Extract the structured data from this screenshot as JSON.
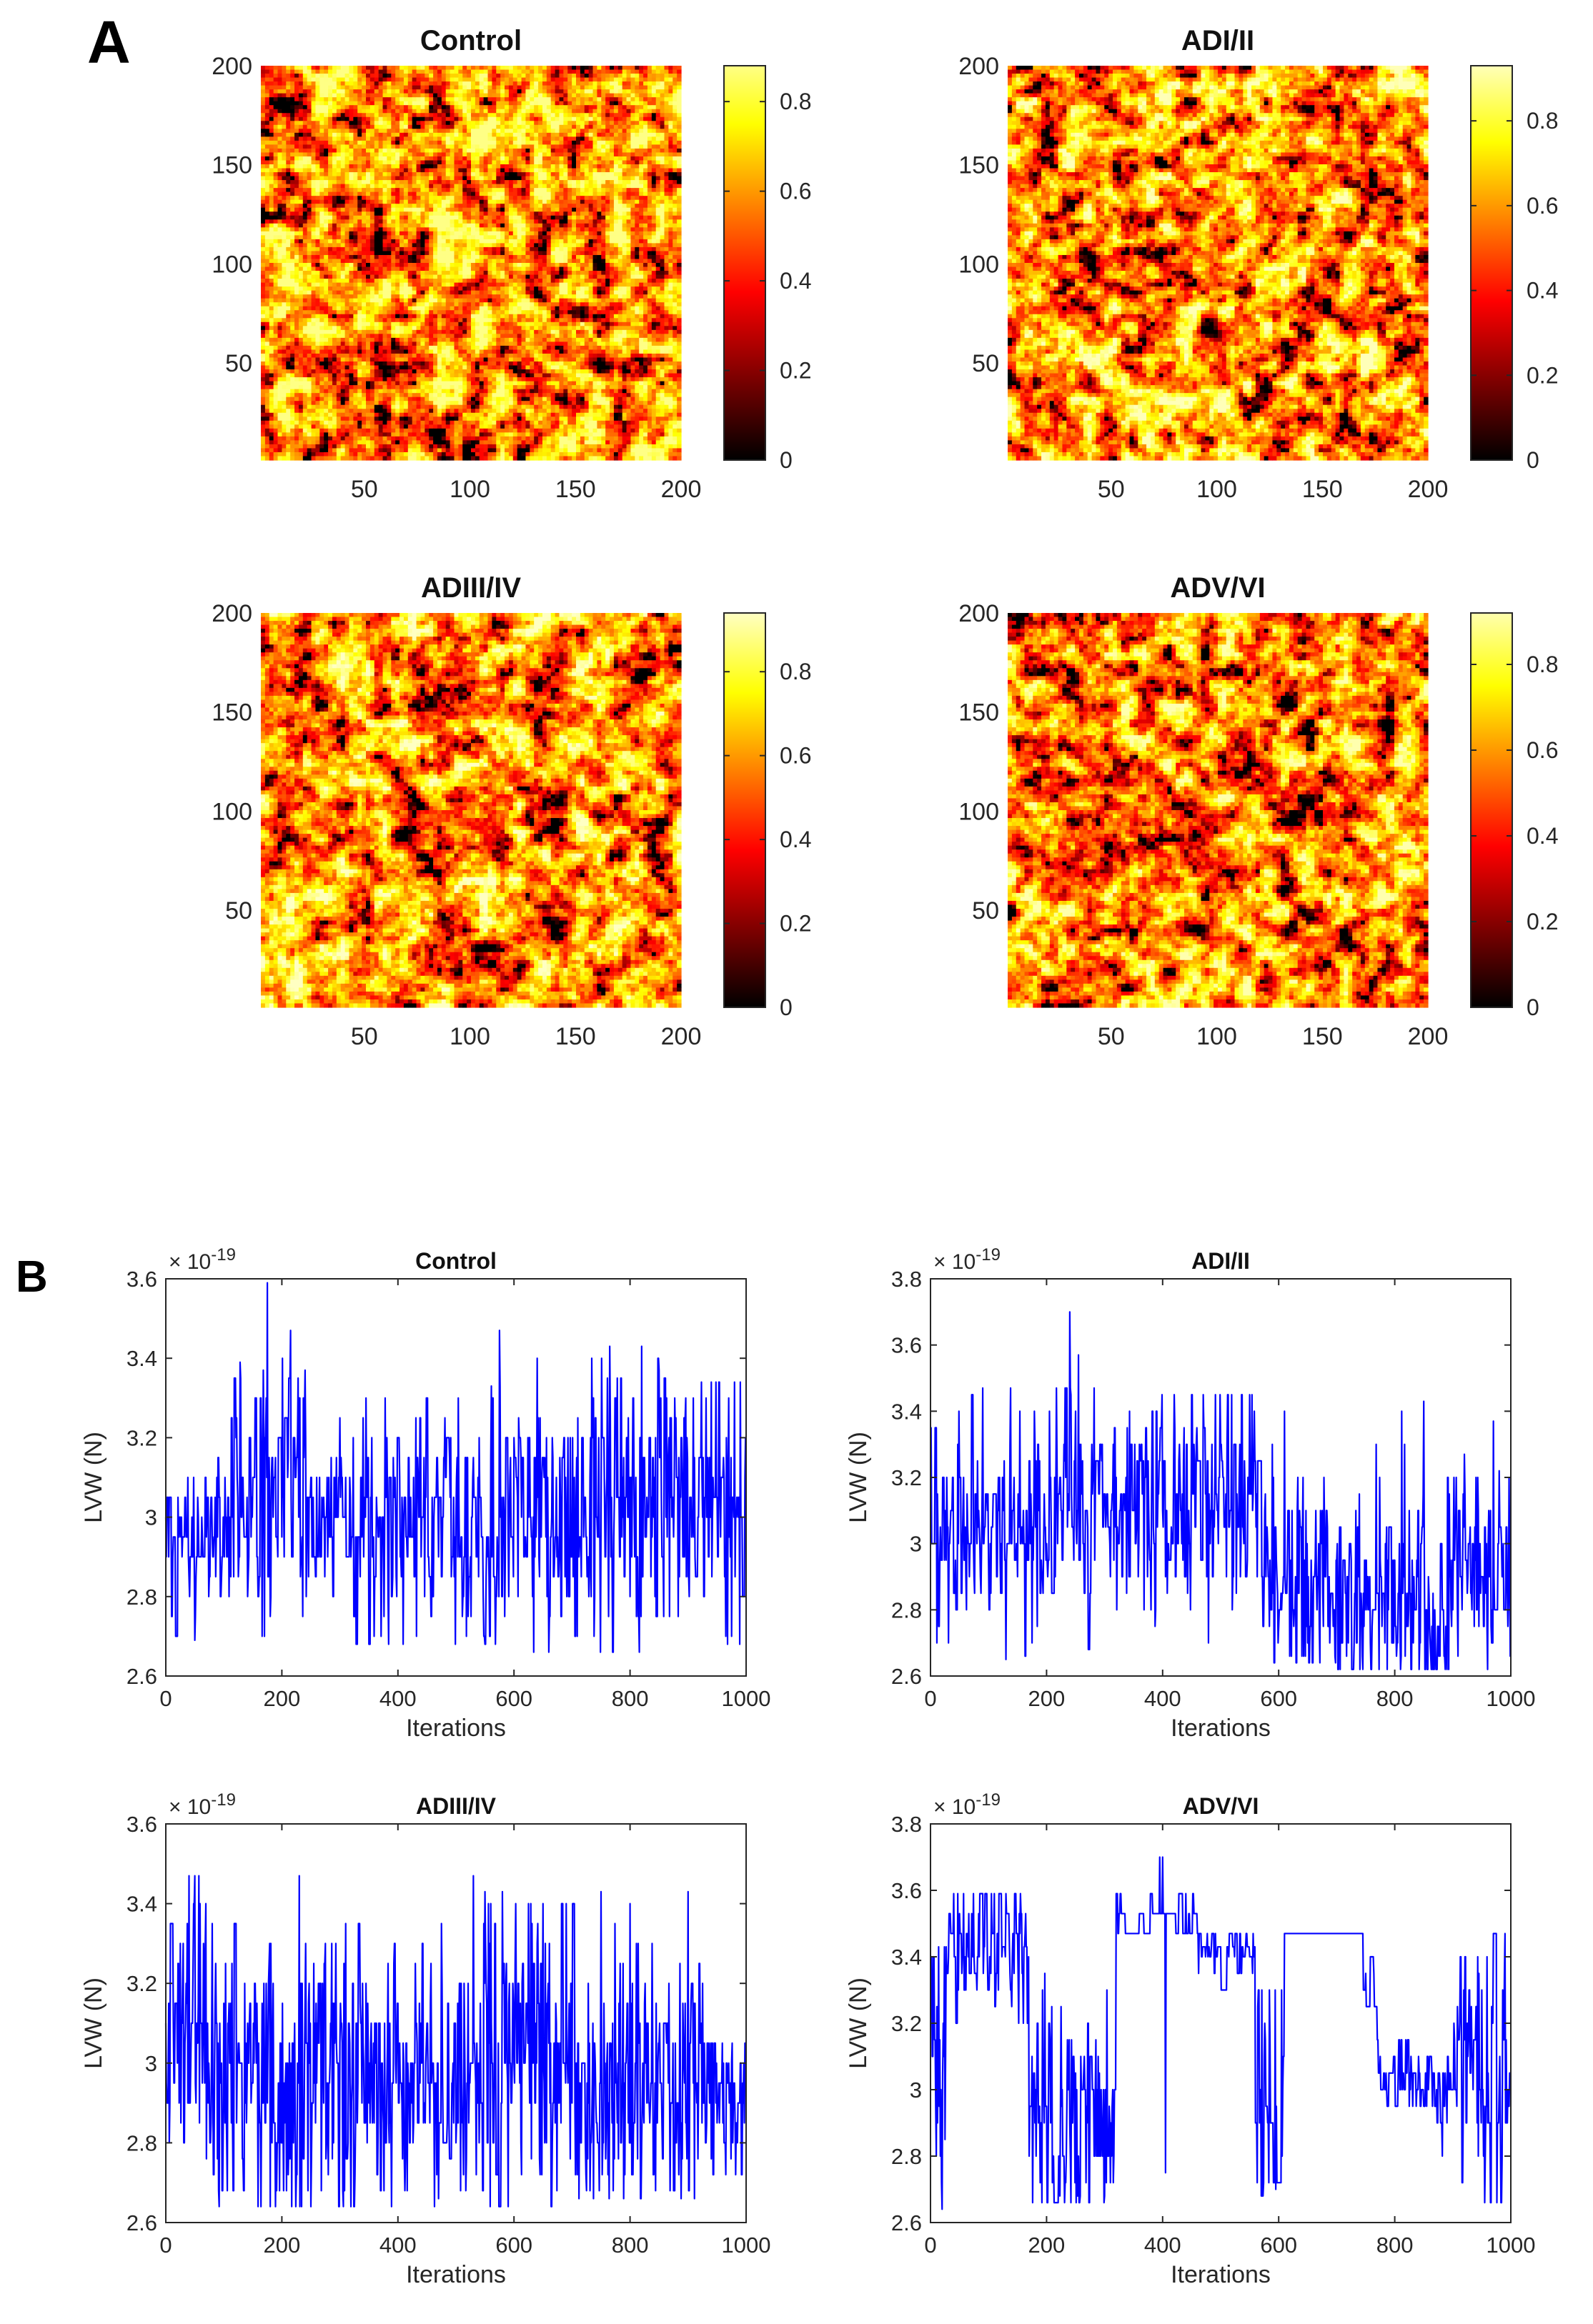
{
  "figure": {
    "panel_a_label": "A",
    "panel_b_label": "B"
  },
  "chart_data": [
    {
      "id": "map-control",
      "type": "heatmap",
      "title": "Control",
      "xlim": [
        1,
        200
      ],
      "ylim": [
        1,
        200
      ],
      "xticks": [
        50,
        100,
        150,
        200
      ],
      "yticks": [
        50,
        100,
        150,
        200
      ],
      "colorbar": {
        "min": 0,
        "max": 0.88,
        "ticks": [
          0,
          0.2,
          0.4,
          0.6,
          0.8
        ],
        "colormap": "hot"
      },
      "seed": 11,
      "dark_bias": 0.0
    },
    {
      "id": "map-adi-ii",
      "type": "heatmap",
      "title": "ADI/II",
      "xlim": [
        1,
        200
      ],
      "ylim": [
        1,
        200
      ],
      "xticks": [
        50,
        100,
        150,
        200
      ],
      "yticks": [
        50,
        100,
        150,
        200
      ],
      "colorbar": {
        "min": 0,
        "max": 0.93,
        "ticks": [
          0,
          0.2,
          0.4,
          0.6,
          0.8
        ],
        "colormap": "hot"
      },
      "seed": 23,
      "dark_bias": 0.05
    },
    {
      "id": "map-adiii-iv",
      "type": "heatmap",
      "title": "ADIII/IV",
      "xlim": [
        1,
        200
      ],
      "ylim": [
        1,
        200
      ],
      "xticks": [
        50,
        100,
        150,
        200
      ],
      "yticks": [
        50,
        100,
        150,
        200
      ],
      "colorbar": {
        "min": 0,
        "max": 0.94,
        "ticks": [
          0,
          0.2,
          0.4,
          0.6,
          0.8
        ],
        "colormap": "hot"
      },
      "seed": 37,
      "dark_bias": 0.08
    },
    {
      "id": "map-adv-vi",
      "type": "heatmap",
      "title": "ADV/VI",
      "xlim": [
        1,
        200
      ],
      "ylim": [
        1,
        200
      ],
      "xticks": [
        50,
        100,
        150,
        200
      ],
      "yticks": [
        50,
        100,
        150,
        200
      ],
      "colorbar": {
        "min": 0,
        "max": 0.92,
        "ticks": [
          0,
          0.2,
          0.4,
          0.6,
          0.8
        ],
        "colormap": "hot"
      },
      "seed": 51,
      "dark_bias": 0.12
    },
    {
      "id": "trace-control",
      "type": "line",
      "title": "Control",
      "xlabel": "Iterations",
      "ylabel": "LVW (N)",
      "exponent": "× 10",
      "exponent_power": "-19",
      "xlim": [
        0,
        1000
      ],
      "ylim": [
        2.6,
        3.6
      ],
      "xticks": [
        0,
        200,
        400,
        600,
        800,
        1000
      ],
      "yticks": [
        2.6,
        2.8,
        3.0,
        3.2,
        3.4,
        3.6
      ],
      "ytick_labels": [
        "2.6",
        "2.8",
        "3",
        "3.2",
        "3.4",
        "3.6"
      ],
      "levels": [
        2.66,
        2.7,
        2.75,
        2.8,
        2.85,
        2.9,
        2.95,
        3.0,
        3.05,
        3.1,
        3.15,
        3.2,
        3.25,
        3.3,
        3.35,
        3.4,
        3.47
      ],
      "segments": [
        {
          "start": 0,
          "end": 20,
          "lo": 2.66,
          "hi": 3.06,
          "mean": 2.98,
          "sd": 0.12,
          "stick": 0.3
        },
        {
          "start": 20,
          "end": 90,
          "lo": 2.7,
          "hi": 3.1,
          "mean": 2.97,
          "sd": 0.1,
          "stick": 0.35
        },
        {
          "start": 90,
          "end": 240,
          "lo": 2.68,
          "hi": 3.4,
          "mean": 3.05,
          "sd": 0.17,
          "stick": 0.3
        },
        {
          "start": 240,
          "end": 320,
          "lo": 2.8,
          "hi": 3.33,
          "mean": 3.02,
          "sd": 0.12,
          "stick": 0.35
        },
        {
          "start": 320,
          "end": 600,
          "lo": 2.68,
          "hi": 3.33,
          "mean": 2.97,
          "sd": 0.16,
          "stick": 0.3
        },
        {
          "start": 600,
          "end": 730,
          "lo": 2.66,
          "hi": 3.35,
          "mean": 3.0,
          "sd": 0.15,
          "stick": 0.3
        },
        {
          "start": 730,
          "end": 900,
          "lo": 2.66,
          "hi": 3.43,
          "mean": 3.06,
          "sd": 0.2,
          "stick": 0.25
        },
        {
          "start": 900,
          "end": 1000,
          "lo": 2.68,
          "hi": 3.34,
          "mean": 3.0,
          "sd": 0.17,
          "stick": 0.3
        }
      ],
      "spikes": [
        [
          175,
          3.59
        ],
        [
          168,
          3.37
        ],
        [
          128,
          3.39
        ],
        [
          120,
          3.35
        ],
        [
          215,
          3.47
        ],
        [
          240,
          3.37
        ],
        [
          345,
          3.3
        ],
        [
          575,
          3.47
        ],
        [
          640,
          3.4
        ],
        [
          765,
          3.43
        ],
        [
          820,
          3.43
        ],
        [
          850,
          3.37
        ],
        [
          980,
          3.34
        ],
        [
          990,
          3.34
        ],
        [
          965,
          2.7
        ],
        [
          660,
          2.66
        ],
        [
          330,
          2.68
        ],
        [
          50,
          2.69
        ]
      ],
      "seed": 101
    },
    {
      "id": "trace-adi-ii",
      "type": "line",
      "title": "ADI/II",
      "xlabel": "Iterations",
      "ylabel": "LVW (N)",
      "exponent": "× 10",
      "exponent_power": "-19",
      "xlim": [
        0,
        1000
      ],
      "ylim": [
        2.6,
        3.8
      ],
      "xticks": [
        0,
        200,
        400,
        600,
        800,
        1000
      ],
      "yticks": [
        2.6,
        2.8,
        3.0,
        3.2,
        3.4,
        3.6,
        3.8
      ],
      "ytick_labels": [
        "2.6",
        "2.8",
        "3",
        "3.2",
        "3.4",
        "3.6",
        "3.8"
      ],
      "levels": [
        2.62,
        2.66,
        2.7,
        2.75,
        2.8,
        2.85,
        2.9,
        2.95,
        3.0,
        3.05,
        3.1,
        3.15,
        3.2,
        3.25,
        3.3,
        3.35,
        3.4,
        3.45,
        3.47
      ],
      "segments": [
        {
          "start": 0,
          "end": 60,
          "lo": 2.65,
          "hi": 3.42,
          "mean": 3.05,
          "sd": 0.16,
          "stick": 0.35
        },
        {
          "start": 60,
          "end": 200,
          "lo": 2.66,
          "hi": 3.47,
          "mean": 3.02,
          "sd": 0.17,
          "stick": 0.3
        },
        {
          "start": 200,
          "end": 290,
          "lo": 2.68,
          "hi": 3.47,
          "mean": 3.12,
          "sd": 0.2,
          "stick": 0.3
        },
        {
          "start": 290,
          "end": 390,
          "lo": 2.75,
          "hi": 3.4,
          "mean": 3.1,
          "sd": 0.15,
          "stick": 0.35
        },
        {
          "start": 390,
          "end": 560,
          "lo": 2.7,
          "hi": 3.45,
          "mean": 3.15,
          "sd": 0.17,
          "stick": 0.3
        },
        {
          "start": 560,
          "end": 700,
          "lo": 2.64,
          "hi": 3.43,
          "mean": 2.9,
          "sd": 0.17,
          "stick": 0.25
        },
        {
          "start": 700,
          "end": 900,
          "lo": 2.62,
          "hi": 3.42,
          "mean": 2.85,
          "sd": 0.17,
          "stick": 0.25
        },
        {
          "start": 900,
          "end": 1000,
          "lo": 2.66,
          "hi": 3.2,
          "mean": 2.95,
          "sd": 0.15,
          "stick": 0.3
        }
      ],
      "spikes": [
        [
          240,
          3.7
        ],
        [
          255,
          3.57
        ],
        [
          90,
          3.47
        ],
        [
          420,
          3.45
        ],
        [
          550,
          3.45
        ],
        [
          610,
          3.4
        ],
        [
          850,
          3.43
        ],
        [
          920,
          3.27
        ],
        [
          970,
          3.37
        ],
        [
          980,
          3.22
        ],
        [
          745,
          2.62
        ],
        [
          960,
          2.62
        ],
        [
          130,
          2.65
        ],
        [
          640,
          2.66
        ]
      ],
      "seed": 202
    },
    {
      "id": "trace-adiii-iv",
      "type": "line",
      "title": "ADIII/IV",
      "xlabel": "Iterations",
      "ylabel": "LVW (N)",
      "exponent": "× 10",
      "exponent_power": "-19",
      "xlim": [
        0,
        1000
      ],
      "ylim": [
        2.6,
        3.6
      ],
      "xticks": [
        0,
        200,
        400,
        600,
        800,
        1000
      ],
      "yticks": [
        2.6,
        2.8,
        3.0,
        3.2,
        3.4,
        3.6
      ],
      "ytick_labels": [
        "2.6",
        "2.8",
        "3",
        "3.2",
        "3.4",
        "3.6"
      ],
      "levels": [
        2.64,
        2.68,
        2.72,
        2.76,
        2.8,
        2.85,
        2.9,
        2.95,
        3.0,
        3.05,
        3.1,
        3.15,
        3.2,
        3.25,
        3.3,
        3.35,
        3.4,
        3.47
      ],
      "segments": [
        {
          "start": 0,
          "end": 70,
          "lo": 2.8,
          "hi": 3.47,
          "mean": 3.1,
          "sd": 0.2,
          "stick": 0.3
        },
        {
          "start": 70,
          "end": 300,
          "lo": 2.64,
          "hi": 3.4,
          "mean": 2.95,
          "sd": 0.19,
          "stick": 0.2
        },
        {
          "start": 300,
          "end": 520,
          "lo": 2.64,
          "hi": 3.35,
          "mean": 2.97,
          "sd": 0.18,
          "stick": 0.2
        },
        {
          "start": 520,
          "end": 700,
          "lo": 2.64,
          "hi": 3.43,
          "mean": 3.02,
          "sd": 0.19,
          "stick": 0.2
        },
        {
          "start": 700,
          "end": 930,
          "lo": 2.66,
          "hi": 3.4,
          "mean": 2.95,
          "sd": 0.18,
          "stick": 0.2
        },
        {
          "start": 930,
          "end": 1000,
          "lo": 2.68,
          "hi": 3.05,
          "mean": 2.88,
          "sd": 0.12,
          "stick": 0.3
        }
      ],
      "spikes": [
        [
          40,
          3.47
        ],
        [
          50,
          3.47
        ],
        [
          230,
          3.47
        ],
        [
          530,
          3.47
        ],
        [
          550,
          3.43
        ],
        [
          580,
          3.43
        ],
        [
          750,
          3.43
        ],
        [
          800,
          3.4
        ],
        [
          690,
          3.4
        ],
        [
          900,
          3.43
        ],
        [
          590,
          2.64
        ],
        [
          180,
          2.64
        ],
        [
          250,
          2.64
        ],
        [
          470,
          2.66
        ]
      ],
      "seed": 303
    },
    {
      "id": "trace-adv-vi",
      "type": "line",
      "title": "ADV/VI",
      "xlabel": "Iterations",
      "ylabel": "LVW (N)",
      "exponent": "× 10",
      "exponent_power": "-19",
      "xlim": [
        0,
        1000
      ],
      "ylim": [
        2.6,
        3.8
      ],
      "xticks": [
        0,
        200,
        400,
        600,
        800,
        1000
      ],
      "yticks": [
        2.6,
        2.8,
        3.0,
        3.2,
        3.4,
        3.6,
        3.8
      ],
      "ytick_labels": [
        "2.6",
        "2.8",
        "3",
        "3.2",
        "3.4",
        "3.6",
        "3.8"
      ],
      "levels": [
        2.64,
        2.68,
        2.72,
        2.8,
        2.9,
        2.95,
        3.0,
        3.05,
        3.1,
        3.15,
        3.2,
        3.25,
        3.3,
        3.35,
        3.4,
        3.43,
        3.47,
        3.53,
        3.59
      ],
      "segments": [
        {
          "start": 0,
          "end": 30,
          "lo": 2.64,
          "hi": 3.43,
          "mean": 3.15,
          "sd": 0.2,
          "stick": 0.3
        },
        {
          "start": 30,
          "end": 170,
          "lo": 3.1,
          "hi": 3.59,
          "mean": 3.42,
          "sd": 0.1,
          "stick": 0.4
        },
        {
          "start": 170,
          "end": 320,
          "lo": 2.66,
          "hi": 3.4,
          "mean": 2.88,
          "sd": 0.18,
          "stick": 0.25
        },
        {
          "start": 320,
          "end": 460,
          "lo": 3.47,
          "hi": 3.59,
          "mean": 3.5,
          "sd": 0.05,
          "stick": 0.8
        },
        {
          "start": 460,
          "end": 560,
          "lo": 3.3,
          "hi": 3.47,
          "mean": 3.42,
          "sd": 0.05,
          "stick": 0.6
        },
        {
          "start": 560,
          "end": 610,
          "lo": 2.68,
          "hi": 3.35,
          "mean": 3.0,
          "sd": 0.2,
          "stick": 0.4
        },
        {
          "start": 610,
          "end": 745,
          "lo": 3.47,
          "hi": 3.47,
          "mean": 3.47,
          "sd": 0.0,
          "stick": 1.0
        },
        {
          "start": 745,
          "end": 770,
          "lo": 3.2,
          "hi": 3.47,
          "mean": 3.35,
          "sd": 0.1,
          "stick": 0.6
        },
        {
          "start": 770,
          "end": 900,
          "lo": 2.68,
          "hi": 3.15,
          "mean": 3.03,
          "sd": 0.08,
          "stick": 0.5
        },
        {
          "start": 900,
          "end": 1000,
          "lo": 2.66,
          "hi": 3.47,
          "mean": 3.05,
          "sd": 0.2,
          "stick": 0.3
        }
      ],
      "spikes": [
        [
          400,
          3.7
        ],
        [
          395,
          3.7
        ],
        [
          440,
          3.59
        ],
        [
          110,
          3.59
        ],
        [
          130,
          3.59
        ],
        [
          20,
          2.64
        ],
        [
          25,
          2.85
        ],
        [
          595,
          2.7
        ],
        [
          405,
          2.75
        ],
        [
          955,
          2.66
        ],
        [
          975,
          3.47
        ],
        [
          990,
          3.47
        ]
      ],
      "seed": 404
    }
  ]
}
